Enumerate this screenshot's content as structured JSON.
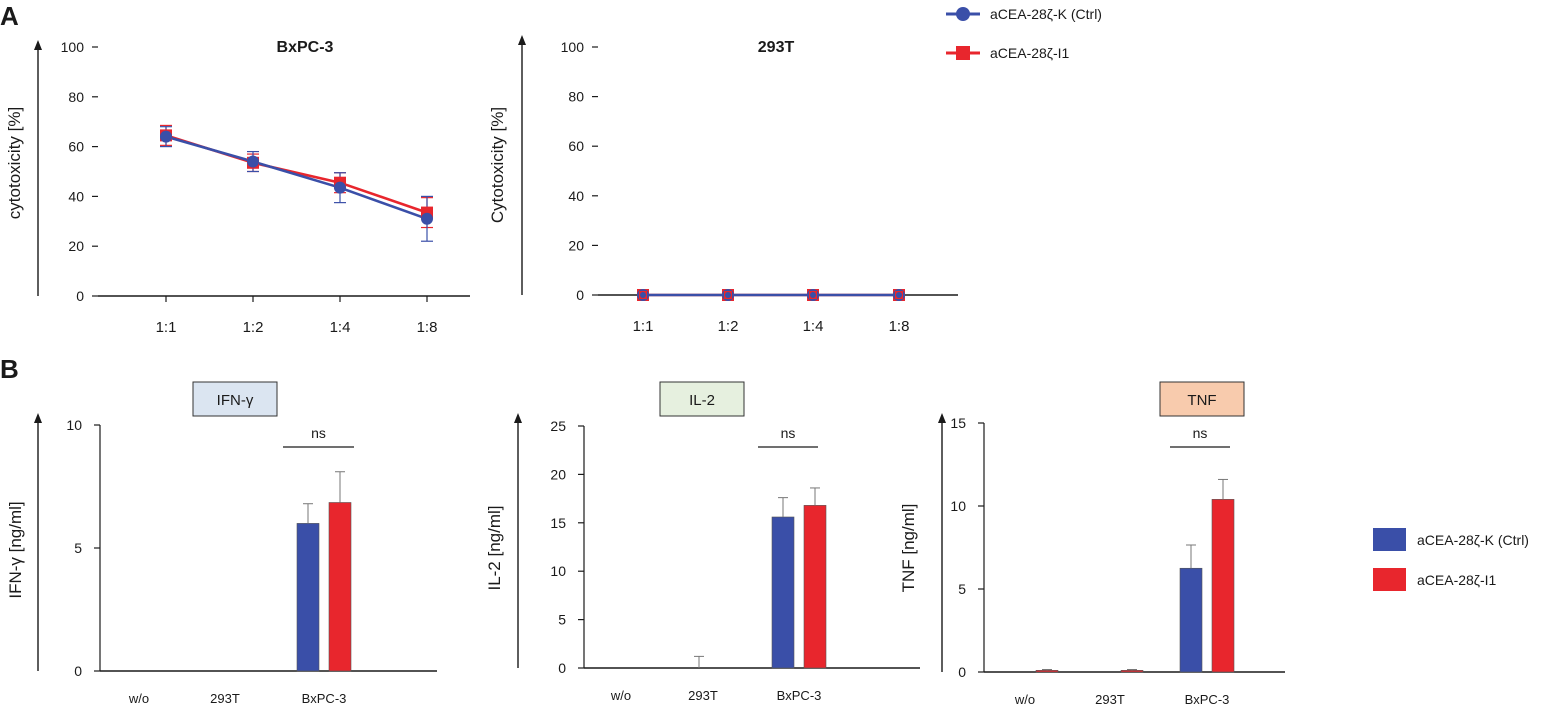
{
  "panel_labels": [
    "A",
    "B"
  ],
  "colors": {
    "ctrl": "#3a4fa8",
    "i1": "#e8262d",
    "axis": "#1a1a1a",
    "ifn_box": "#dbe5f1",
    "il2_box": "#e6f0df",
    "tnf_box": "#f8cbad"
  },
  "legend_a": [
    {
      "label": "aCEA-28ζ-K (Ctrl)",
      "marker": "circle"
    },
    {
      "label": "aCEA-28ζ-I1",
      "marker": "square"
    }
  ],
  "legend_b": [
    {
      "label": "aCEA-28ζ-K (Ctrl)"
    },
    {
      "label": "aCEA-28ζ-I1"
    }
  ],
  "chart_data": [
    {
      "type": "line",
      "title": "BxPC-3",
      "ylabel": "cytotoxicity [%]",
      "xlabel": "",
      "categories": [
        "1:1",
        "1:2",
        "1:4",
        "1:8"
      ],
      "ylim": [
        0,
        100
      ],
      "yticks": [
        "0",
        "20",
        "40",
        "60",
        "80",
        "100"
      ],
      "series": [
        {
          "name": "aCEA-28ζ-K (Ctrl)",
          "values": [
            64,
            54,
            43.5,
            31
          ],
          "errors": [
            4,
            4,
            6,
            9
          ]
        },
        {
          "name": "aCEA-28ζ-I1",
          "values": [
            64.5,
            53.5,
            45.5,
            33.5
          ],
          "errors": [
            4,
            3.5,
            4,
            6
          ]
        }
      ]
    },
    {
      "type": "line",
      "title": "293T",
      "ylabel": "Cytotoxicity [%]",
      "xlabel": "",
      "categories": [
        "1:1",
        "1:2",
        "1:4",
        "1:8"
      ],
      "ylim": [
        0,
        100
      ],
      "yticks": [
        "0",
        "20",
        "40",
        "60",
        "80",
        "100"
      ],
      "series": [
        {
          "name": "aCEA-28ζ-K (Ctrl)",
          "values": [
            0,
            0,
            0,
            0
          ],
          "errors": [
            0,
            0,
            0,
            0
          ]
        },
        {
          "name": "aCEA-28ζ-I1",
          "values": [
            0,
            0,
            0,
            0
          ],
          "errors": [
            0,
            0,
            0,
            0
          ]
        }
      ]
    },
    {
      "type": "bar",
      "title": "IFN-γ",
      "ylabel": "IFN-γ [ng/ml]",
      "categories": [
        "w/o",
        "293T",
        "BxPC-3"
      ],
      "ylim": [
        0,
        10
      ],
      "yticks": [
        "0",
        "5",
        "10"
      ],
      "significance": "ns",
      "series": [
        {
          "name": "aCEA-28ζ-K (Ctrl)",
          "values": [
            0,
            0,
            6.0
          ],
          "errors": [
            0,
            0,
            0.8
          ]
        },
        {
          "name": "aCEA-28ζ-I1",
          "values": [
            0,
            0,
            6.85
          ],
          "errors": [
            0,
            0,
            1.25
          ]
        }
      ]
    },
    {
      "type": "bar",
      "title": "IL-2",
      "ylabel": "IL-2 [ng/ml]",
      "categories": [
        "w/o",
        "293T",
        "BxPC-3"
      ],
      "ylim": [
        0,
        25
      ],
      "yticks": [
        "0",
        "5",
        "10",
        "15",
        "20",
        "25"
      ],
      "significance": "ns",
      "series": [
        {
          "name": "aCEA-28ζ-K (Ctrl)",
          "values": [
            0,
            0,
            15.6
          ],
          "errors": [
            0,
            1.2,
            2.0
          ]
        },
        {
          "name": "aCEA-28ζ-I1",
          "values": [
            0,
            0,
            16.8
          ],
          "errors": [
            0,
            0,
            1.8
          ]
        }
      ]
    },
    {
      "type": "bar",
      "title": "TNF",
      "ylabel": "TNF [ng/ml]",
      "categories": [
        "w/o",
        "293T",
        "BxPC-3"
      ],
      "ylim": [
        0,
        15
      ],
      "yticks": [
        "0",
        "5",
        "10",
        "15"
      ],
      "significance": "ns",
      "series": [
        {
          "name": "aCEA-28ζ-K (Ctrl)",
          "values": [
            0,
            0,
            6.25
          ],
          "errors": [
            0,
            0,
            1.4
          ]
        },
        {
          "name": "aCEA-28ζ-I1",
          "values": [
            0.1,
            0.1,
            10.4
          ],
          "errors": [
            0.05,
            0.05,
            1.2
          ]
        }
      ]
    }
  ]
}
